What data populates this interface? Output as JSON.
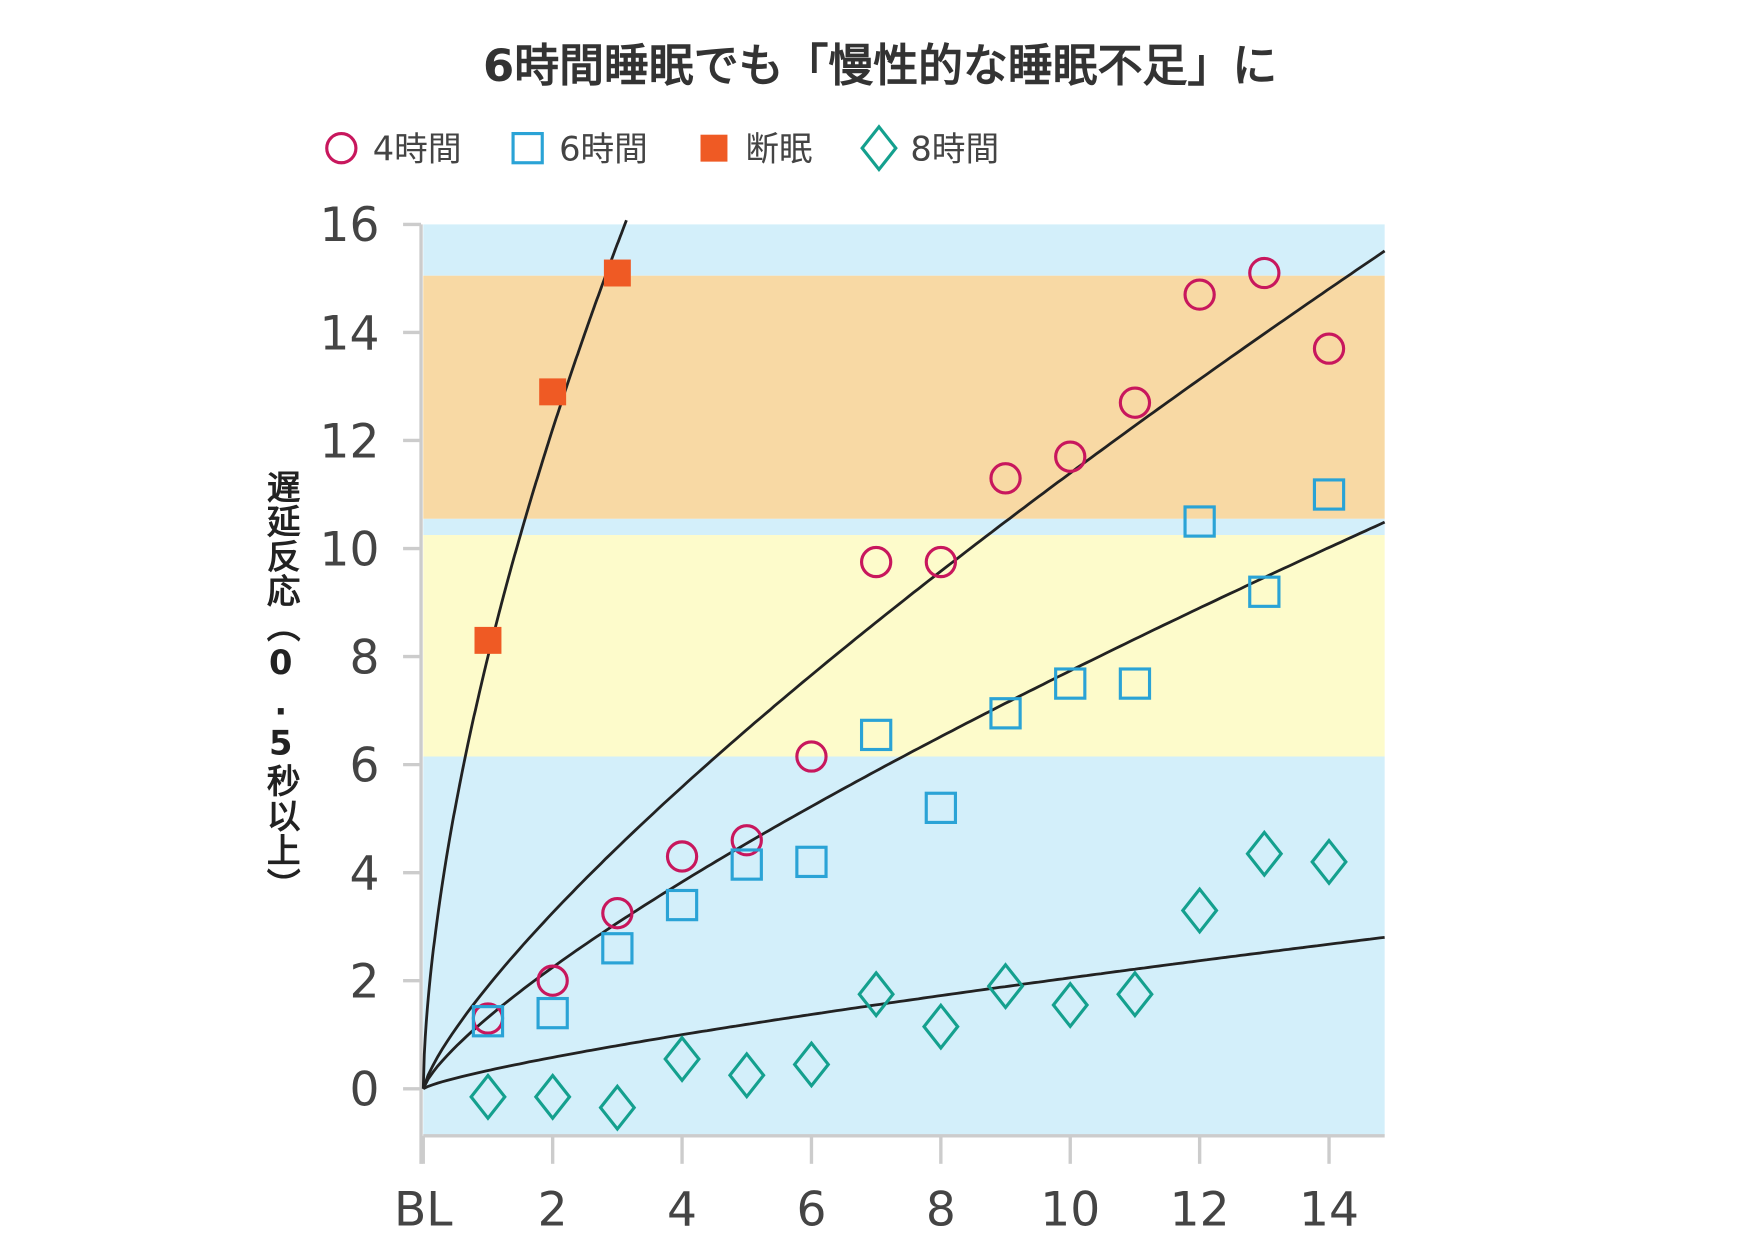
{
  "chart_data": {
    "type": "scatter",
    "title": "6時間睡眠でも「慢性的な睡眠不足」に",
    "xlabel": "",
    "ylabel": "遅延反応（0.5秒以上）",
    "xlim": [
      0,
      14.86
    ],
    "ylim": [
      -0.87,
      16
    ],
    "x_tick_labels": [
      {
        "v": 0,
        "t": "BL"
      },
      {
        "v": 2,
        "t": "2"
      },
      {
        "v": 4,
        "t": "4"
      },
      {
        "v": 6,
        "t": "6"
      },
      {
        "v": 8,
        "t": "8"
      },
      {
        "v": 10,
        "t": "10"
      },
      {
        "v": 12,
        "t": "12"
      },
      {
        "v": 14,
        "t": "14"
      }
    ],
    "y_tick_labels": [
      {
        "v": 0,
        "t": "0"
      },
      {
        "v": 2,
        "t": "2"
      },
      {
        "v": 4,
        "t": "4"
      },
      {
        "v": 6,
        "t": "6"
      },
      {
        "v": 8,
        "t": "8"
      },
      {
        "v": 10,
        "t": "10"
      },
      {
        "v": 12,
        "t": "12"
      },
      {
        "v": 14,
        "t": "14"
      },
      {
        "v": 16,
        "t": "16"
      }
    ],
    "legend_placement": "top",
    "bands": [
      {
        "from": 15.05,
        "to": 16,
        "color": "#d3effa"
      },
      {
        "from": 10.55,
        "to": 15.05,
        "color": "#f8d9a4"
      },
      {
        "from": 10.25,
        "to": 10.55,
        "color": "#d3effa"
      },
      {
        "from": 6.15,
        "to": 10.25,
        "color": "#fdfbcb"
      },
      {
        "from": -0.87,
        "to": 6.15,
        "color": "#d3effa"
      }
    ],
    "series": [
      {
        "name": "4時間",
        "marker": "circle",
        "color": "#c8175d",
        "x": [
          1,
          2,
          3,
          4,
          5,
          6,
          7,
          8,
          9,
          10,
          11,
          12,
          13,
          14
        ],
        "y": [
          1.3,
          2.0,
          3.25,
          4.3,
          4.6,
          6.15,
          9.75,
          9.75,
          11.3,
          11.7,
          12.7,
          14.7,
          15.1,
          13.7
        ],
        "fit": {
          "a": 1.9,
          "b": 0.778,
          "xmax": 14.86
        }
      },
      {
        "name": "6時間",
        "marker": "square",
        "color": "#2aa3d6",
        "x": [
          1,
          2,
          3,
          4,
          5,
          6,
          7,
          8,
          9,
          10,
          11,
          12,
          13,
          14
        ],
        "y": [
          1.25,
          1.4,
          2.6,
          3.4,
          4.15,
          4.2,
          6.55,
          5.2,
          6.95,
          7.5,
          7.5,
          10.5,
          9.2,
          11.0
        ],
        "fit": {
          "a": 1.32,
          "b": 0.768,
          "xmax": 14.86
        }
      },
      {
        "name": "断眠",
        "marker": "filled-square",
        "color": "#ef5a24",
        "x": [
          1,
          2,
          3
        ],
        "y": [
          8.3,
          12.9,
          15.1
        ],
        "fit": {
          "a": 8.0,
          "b": 0.61,
          "xmax": 3.14
        }
      },
      {
        "name": "8時間",
        "marker": "diamond",
        "color": "#14a08e",
        "x": [
          1,
          2,
          3,
          4,
          5,
          6,
          7,
          8,
          9,
          10,
          11,
          12,
          13,
          14
        ],
        "y": [
          -0.15,
          -0.15,
          -0.35,
          0.55,
          0.25,
          0.45,
          1.75,
          1.15,
          1.9,
          1.55,
          1.75,
          3.3,
          4.35,
          4.2
        ],
        "fit": {
          "a": 0.337,
          "b": 0.785,
          "xmax": 14.86
        }
      }
    ]
  }
}
